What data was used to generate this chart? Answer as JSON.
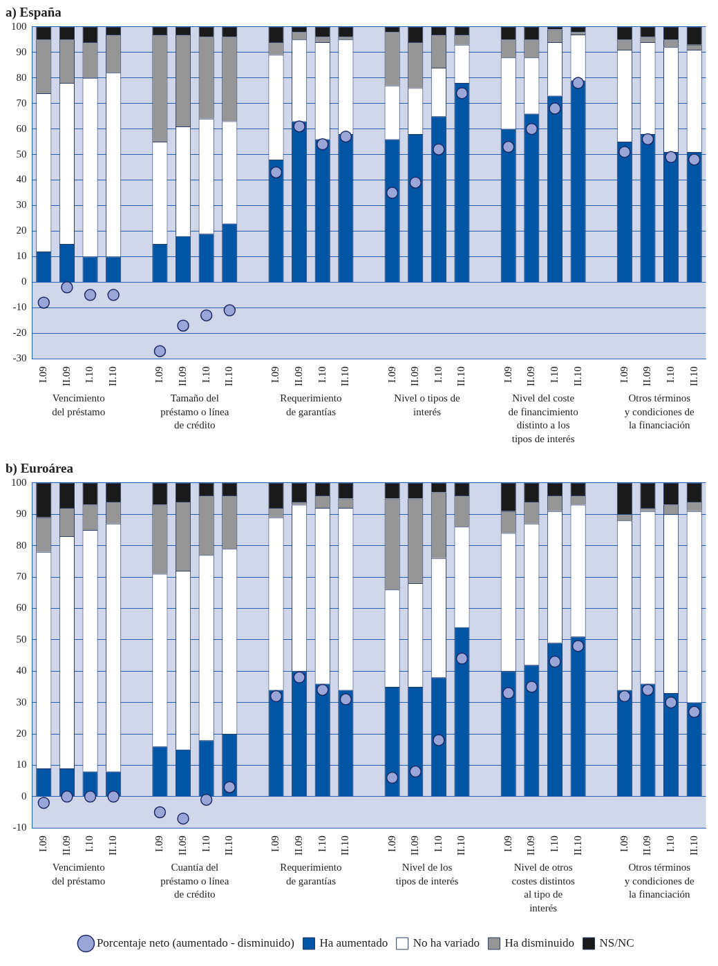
{
  "chart_data": [
    {
      "type": "bar",
      "title": "a) España",
      "stacked": true,
      "grid": "y",
      "legend": false,
      "ylim": [
        -30,
        100
      ],
      "yticks": [
        -30,
        -20,
        -10,
        0,
        10,
        20,
        30,
        40,
        50,
        60,
        70,
        80,
        90,
        100
      ],
      "categories": [
        "I.09",
        "II.09",
        "I.10",
        "II.10",
        null,
        "I.09",
        "II.09",
        "I.10",
        "II.10",
        null,
        "I.09",
        "II.09",
        "I.10",
        "II.10",
        null,
        "I.09",
        "II.09",
        "I.10",
        "II.10",
        null,
        "I.09",
        "II.09",
        "I.10",
        "II.10",
        null,
        "I.09",
        "II.09",
        "I.10",
        "II.10"
      ],
      "series": [
        {
          "color": "#0055a4",
          "values": [
            12,
            15,
            10,
            10,
            null,
            15,
            18,
            19,
            23,
            null,
            48,
            63,
            56,
            58,
            null,
            56,
            58,
            65,
            78,
            null,
            60,
            66,
            73,
            79,
            null,
            55,
            58,
            51,
            51
          ]
        },
        {
          "color": "#ffffff",
          "values": [
            62,
            63,
            70,
            72,
            null,
            40,
            43,
            45,
            40,
            null,
            41,
            32,
            38,
            37,
            null,
            21,
            18,
            19,
            15,
            null,
            28,
            22,
            21,
            18,
            null,
            36,
            36,
            41,
            40
          ]
        },
        {
          "color": "#969696",
          "values": [
            21,
            17,
            14,
            15,
            null,
            42,
            36,
            32,
            33,
            null,
            5,
            3,
            2,
            1,
            null,
            21,
            18,
            13,
            4,
            null,
            7,
            7,
            5,
            1,
            null,
            4,
            2,
            3,
            2
          ]
        },
        {
          "color": "#1a1a1a",
          "values": [
            5,
            5,
            6,
            3,
            null,
            3,
            3,
            4,
            4,
            null,
            6,
            2,
            4,
            4,
            null,
            2,
            6,
            3,
            3,
            null,
            5,
            5,
            1,
            2,
            null,
            5,
            4,
            5,
            7
          ]
        },
        {
          "type": "scatter",
          "marker": "circle",
          "color": "#9aa6d8",
          "values": [
            -8,
            -2,
            -5,
            -5,
            null,
            -27,
            -17,
            -13,
            -11,
            null,
            43,
            61,
            54,
            57,
            null,
            35,
            39,
            52,
            74,
            null,
            53,
            60,
            68,
            78,
            null,
            51,
            56,
            49,
            48
          ]
        }
      ],
      "annotations": [
        "Vencimiento\ndel préstamo",
        "Tamaño del\npréstamo o línea\nde crédito",
        "Requerimiento\nde garantías",
        "Nivel o tipos de\ninterés",
        "Nivel del coste\nde financimiento\ndistinto a los\ntipos de interés",
        "Otros términos\ny condiciones de\nla financiación"
      ]
    },
    {
      "type": "bar",
      "title": "b) Euroárea",
      "stacked": true,
      "grid": "y",
      "legend": "bottom",
      "ylim": [
        -10,
        100
      ],
      "yticks": [
        -10,
        0,
        10,
        20,
        30,
        40,
        50,
        60,
        70,
        80,
        90,
        100
      ],
      "categories": [
        "I.09",
        "II.09",
        "I.10",
        "II.10",
        null,
        "I.09",
        "II.09",
        "I.10",
        "II.10",
        null,
        "I.09",
        "II.09",
        "I.10",
        "II.10",
        null,
        "I.09",
        "II.09",
        "I.10",
        "II.10",
        null,
        "I.09",
        "II.09",
        "I.10",
        "II.10",
        null,
        "I.09",
        "II.09",
        "I.10",
        "II.10"
      ],
      "series": [
        {
          "name": "Ha aumentado",
          "color": "#0055a4",
          "values": [
            9,
            9,
            8,
            8,
            null,
            16,
            15,
            18,
            20,
            null,
            34,
            40,
            36,
            34,
            null,
            35,
            35,
            38,
            54,
            null,
            40,
            42,
            49,
            51,
            null,
            34,
            36,
            33,
            30
          ]
        },
        {
          "name": "No ha variado",
          "color": "#ffffff",
          "values": [
            69,
            74,
            77,
            79,
            null,
            55,
            57,
            59,
            59,
            null,
            55,
            53,
            56,
            58,
            null,
            31,
            33,
            38,
            32,
            null,
            44,
            45,
            42,
            42,
            null,
            54,
            55,
            57,
            61
          ]
        },
        {
          "name": "Ha disminuido",
          "color": "#969696",
          "values": [
            11,
            9,
            8,
            7,
            null,
            22,
            22,
            19,
            17,
            null,
            3,
            1,
            4,
            3,
            null,
            29,
            27,
            21,
            10,
            null,
            7,
            7,
            5,
            3,
            null,
            2,
            1,
            3,
            3
          ]
        },
        {
          "name": "NS/NC",
          "color": "#1a1a1a",
          "values": [
            11,
            8,
            7,
            6,
            null,
            7,
            6,
            4,
            4,
            null,
            8,
            6,
            4,
            5,
            null,
            5,
            5,
            3,
            4,
            null,
            9,
            6,
            4,
            4,
            null,
            10,
            8,
            7,
            6
          ]
        },
        {
          "type": "scatter",
          "marker": "circle",
          "name": "Porcentaje neto (aumentado - disminuido)",
          "color": "#9aa6d8",
          "values": [
            -2,
            0,
            0,
            0,
            null,
            -5,
            -7,
            -1,
            3,
            null,
            32,
            38,
            34,
            31,
            null,
            6,
            8,
            18,
            44,
            null,
            33,
            35,
            43,
            48,
            null,
            32,
            34,
            30,
            27
          ]
        }
      ],
      "annotations": [
        "Vencimiento\ndel préstamo",
        "Cuantía del\npréstamo o línea\nde crédito",
        "Requerimiento\nde garantías",
        "Nivel de los\ntipos de interés",
        "Nivel de otros\ncostes distintos\nal tipo de\ninterés",
        "Otros términos\ny condiciones de\nla financiación"
      ]
    }
  ]
}
